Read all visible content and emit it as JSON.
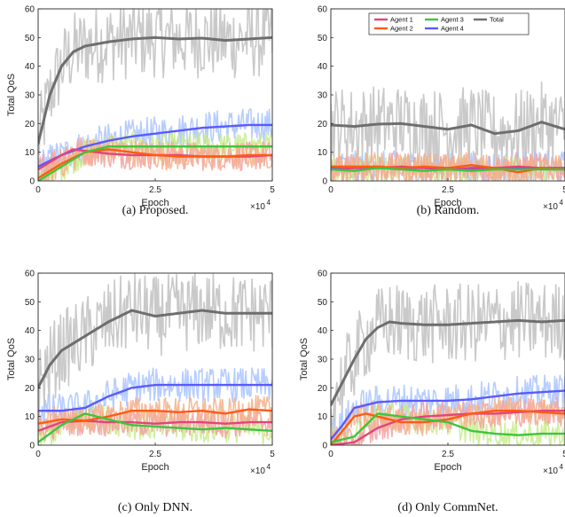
{
  "colors": {
    "agent1": "#e0457b",
    "agent2": "#ff5a14",
    "agent3": "#3ec43e",
    "agent4": "#5a5aff",
    "total": "#6e6e6e",
    "agent1_raw": "#f5a0a0",
    "agent2_raw": "#f4b08a",
    "agent3_raw": "#c8ec8c",
    "agent4_raw": "#a9c4ff",
    "total_raw": "#c0c0c0"
  },
  "chart_data": [
    {
      "type": "line",
      "caption": "(a) Proposed.",
      "xlabel": "Epoch",
      "ylabel": "Total QoS",
      "x_multiplier": "×10",
      "x_multiplier_exp": "4",
      "xlim": [
        0,
        5
      ],
      "ylim": [
        0,
        60
      ],
      "xticks": [
        "0",
        "2.5",
        "5"
      ],
      "yticks": [
        "0",
        "10",
        "20",
        "30",
        "40",
        "50",
        "60"
      ],
      "legend": null,
      "series": [
        {
          "key": "total",
          "x": [
            0,
            0.25,
            0.5,
            0.75,
            1.0,
            1.5,
            2.0,
            2.5,
            3.0,
            3.5,
            4.0,
            4.5,
            5.0
          ],
          "values": [
            13,
            30,
            40,
            45,
            47,
            48.5,
            49.5,
            50,
            49.5,
            49.8,
            49,
            49.5,
            50
          ]
        },
        {
          "key": "agent4",
          "x": [
            0,
            0.5,
            1.0,
            1.5,
            2.0,
            2.5,
            3.0,
            3.5,
            4.0,
            4.5,
            5.0
          ],
          "values": [
            5,
            9,
            12,
            14,
            15.5,
            16.5,
            17.5,
            18.5,
            19,
            19.5,
            19.5
          ]
        },
        {
          "key": "agent1",
          "x": [
            0,
            0.5,
            0.75,
            1.0,
            1.5,
            2.0,
            2.5,
            3.0,
            3.5,
            4.0,
            4.5,
            5.0
          ],
          "values": [
            4,
            9,
            11,
            10.5,
            9.5,
            9,
            9,
            9,
            8.5,
            8.5,
            8.5,
            9
          ]
        },
        {
          "key": "agent2",
          "x": [
            0,
            0.5,
            1.0,
            1.5,
            2.0,
            2.5,
            3.0,
            3.5,
            4.0,
            4.5,
            5.0
          ],
          "values": [
            1,
            6,
            10,
            11,
            10,
            9,
            8.5,
            8.5,
            8.5,
            9,
            9
          ]
        },
        {
          "key": "agent3",
          "x": [
            0,
            0.5,
            1.0,
            1.5,
            2.0,
            2.5,
            3.0,
            3.5,
            4.0,
            4.5,
            5.0
          ],
          "values": [
            0,
            5,
            10,
            12,
            12,
            12,
            12,
            12,
            12,
            12,
            12
          ]
        }
      ]
    },
    {
      "type": "line",
      "caption": "(b) Random.",
      "xlabel": "Epoch",
      "ylabel": "",
      "x_multiplier": "×10",
      "x_multiplier_exp": "4",
      "xlim": [
        0,
        5
      ],
      "ylim": [
        0,
        60
      ],
      "xticks": [
        "0",
        "2.5",
        "5"
      ],
      "yticks": [
        "0",
        "10",
        "20",
        "30",
        "40",
        "50",
        "60"
      ],
      "legend": {
        "placement": "top",
        "entries": [
          {
            "label": "Agent 1",
            "key": "agent1"
          },
          {
            "label": "Agent 3",
            "key": "agent3"
          },
          {
            "label": "Total",
            "key": "total"
          },
          {
            "label": "Agent 2",
            "key": "agent2"
          },
          {
            "label": "Agent 4",
            "key": "agent4"
          }
        ]
      },
      "series": [
        {
          "key": "total",
          "x": [
            0,
            0.5,
            1.0,
            1.5,
            2.0,
            2.5,
            3.0,
            3.5,
            4.0,
            4.5,
            5.0
          ],
          "values": [
            19.5,
            19,
            19.8,
            20,
            19,
            18,
            19.5,
            16.5,
            17.5,
            20.5,
            18
          ]
        },
        {
          "key": "agent4",
          "x": [
            0,
            0.5,
            1.0,
            1.5,
            2.0,
            2.5,
            3.0,
            3.5,
            4.0,
            4.5,
            5.0
          ],
          "values": [
            4.5,
            4.5,
            4.5,
            4.5,
            4.5,
            4,
            4.5,
            4.5,
            4.5,
            4.5,
            4.5
          ]
        },
        {
          "key": "agent1",
          "x": [
            0,
            0.5,
            1.0,
            1.5,
            2.0,
            2.5,
            3.0,
            3.5,
            4.0,
            4.5,
            5.0
          ],
          "values": [
            4,
            4.5,
            4.5,
            5,
            4.5,
            4.5,
            4,
            4.5,
            5,
            4.5,
            4.5
          ]
        },
        {
          "key": "agent2",
          "x": [
            0,
            0.5,
            1.0,
            1.5,
            2.0,
            2.5,
            3.0,
            3.5,
            4.0,
            4.5,
            5.0
          ],
          "values": [
            5,
            5,
            5,
            4.5,
            5,
            4.5,
            5.5,
            4.5,
            3,
            4.5,
            4
          ]
        },
        {
          "key": "agent3",
          "x": [
            0,
            0.5,
            1.0,
            1.5,
            2.0,
            2.5,
            3.0,
            3.5,
            4.0,
            4.5,
            5.0
          ],
          "values": [
            4,
            3.5,
            4.5,
            4,
            3.5,
            4,
            3.5,
            4,
            4,
            4,
            4
          ]
        }
      ]
    },
    {
      "type": "line",
      "caption": "(c) Only DNN.",
      "xlabel": "Epoch",
      "ylabel": "Total QoS",
      "x_multiplier": "×10",
      "x_multiplier_exp": "4",
      "xlim": [
        0,
        5
      ],
      "ylim": [
        0,
        60
      ],
      "xticks": [
        "0",
        "2.5",
        "5"
      ],
      "yticks": [
        "0",
        "10",
        "20",
        "30",
        "40",
        "50",
        "60"
      ],
      "legend": null,
      "series": [
        {
          "key": "total",
          "x": [
            0,
            0.25,
            0.5,
            1.0,
            1.5,
            2.0,
            2.5,
            3.0,
            3.5,
            4.0,
            4.5,
            5.0
          ],
          "values": [
            20,
            28,
            33,
            38,
            43,
            47,
            45,
            46,
            47,
            46,
            46,
            46
          ]
        },
        {
          "key": "agent4",
          "x": [
            0,
            0.5,
            1.0,
            1.5,
            2.0,
            2.5,
            3.0,
            3.5,
            4.0,
            4.5,
            5.0
          ],
          "values": [
            12,
            12,
            13,
            17,
            20,
            21,
            21,
            21,
            21,
            21,
            21
          ]
        },
        {
          "key": "agent1",
          "x": [
            0,
            0.5,
            1.0,
            1.5,
            2.0,
            2.5,
            3.0,
            3.5,
            4.0,
            4.5,
            5.0
          ],
          "values": [
            5,
            8,
            8.5,
            8,
            8,
            7.5,
            8,
            8,
            7.5,
            8,
            8
          ]
        },
        {
          "key": "agent2",
          "x": [
            0,
            0.5,
            1.0,
            1.5,
            2.0,
            2.5,
            3.0,
            3.5,
            4.0,
            4.5,
            5.0
          ],
          "values": [
            7.5,
            9,
            8.5,
            10,
            12,
            12,
            11.5,
            12,
            11,
            12.5,
            12
          ]
        },
        {
          "key": "agent3",
          "x": [
            0,
            0.5,
            1.0,
            1.5,
            2.0,
            2.5,
            3.0,
            3.5,
            4.0,
            4.5,
            5.0
          ],
          "values": [
            1,
            7,
            11,
            9,
            7,
            6.5,
            6,
            5.5,
            6,
            5.5,
            5
          ]
        }
      ]
    },
    {
      "type": "line",
      "caption": "(d) Only CommNet.",
      "xlabel": "Epoch",
      "ylabel": "Total QoS",
      "x_multiplier": "×10",
      "x_multiplier_exp": "4",
      "xlim": [
        0,
        5
      ],
      "ylim": [
        0,
        60
      ],
      "xticks": [
        "0",
        "2.5",
        "5"
      ],
      "yticks": [
        "0",
        "10",
        "20",
        "30",
        "40",
        "50",
        "60"
      ],
      "legend": null,
      "series": [
        {
          "key": "total",
          "x": [
            0,
            0.25,
            0.5,
            0.75,
            1.0,
            1.25,
            1.5,
            2.0,
            2.5,
            3.0,
            3.5,
            4.0,
            4.5,
            5.0
          ],
          "values": [
            14,
            22,
            30,
            37,
            41,
            43,
            42.5,
            42,
            42,
            42.5,
            43,
            43.5,
            43,
            43.5
          ]
        },
        {
          "key": "agent4",
          "x": [
            0,
            0.25,
            0.5,
            1.0,
            1.5,
            2.0,
            2.5,
            3.0,
            3.5,
            4.0,
            4.5,
            5.0
          ],
          "values": [
            2,
            7,
            13,
            15,
            15.5,
            15.5,
            15.5,
            16,
            17,
            18,
            18.5,
            19
          ]
        },
        {
          "key": "agent1",
          "x": [
            0,
            0.5,
            1.0,
            1.5,
            2.0,
            2.5,
            3.0,
            3.5,
            4.0,
            4.5,
            5.0
          ],
          "values": [
            0,
            1,
            6,
            9,
            10,
            10.5,
            11,
            11,
            11.5,
            12,
            12
          ]
        },
        {
          "key": "agent2",
          "x": [
            0,
            0.5,
            0.75,
            1.0,
            1.5,
            2.0,
            2.5,
            3.0,
            3.5,
            4.0,
            4.5,
            5.0
          ],
          "values": [
            0,
            10,
            11,
            10,
            8,
            8,
            9,
            11,
            12,
            12,
            11.5,
            11
          ]
        },
        {
          "key": "agent3",
          "x": [
            0,
            0.5,
            1.0,
            1.5,
            2.0,
            2.5,
            3.0,
            3.5,
            4.0,
            4.5,
            5.0
          ],
          "values": [
            1,
            3,
            11,
            10,
            9,
            8,
            5,
            4,
            3.5,
            4,
            4
          ]
        }
      ]
    }
  ]
}
